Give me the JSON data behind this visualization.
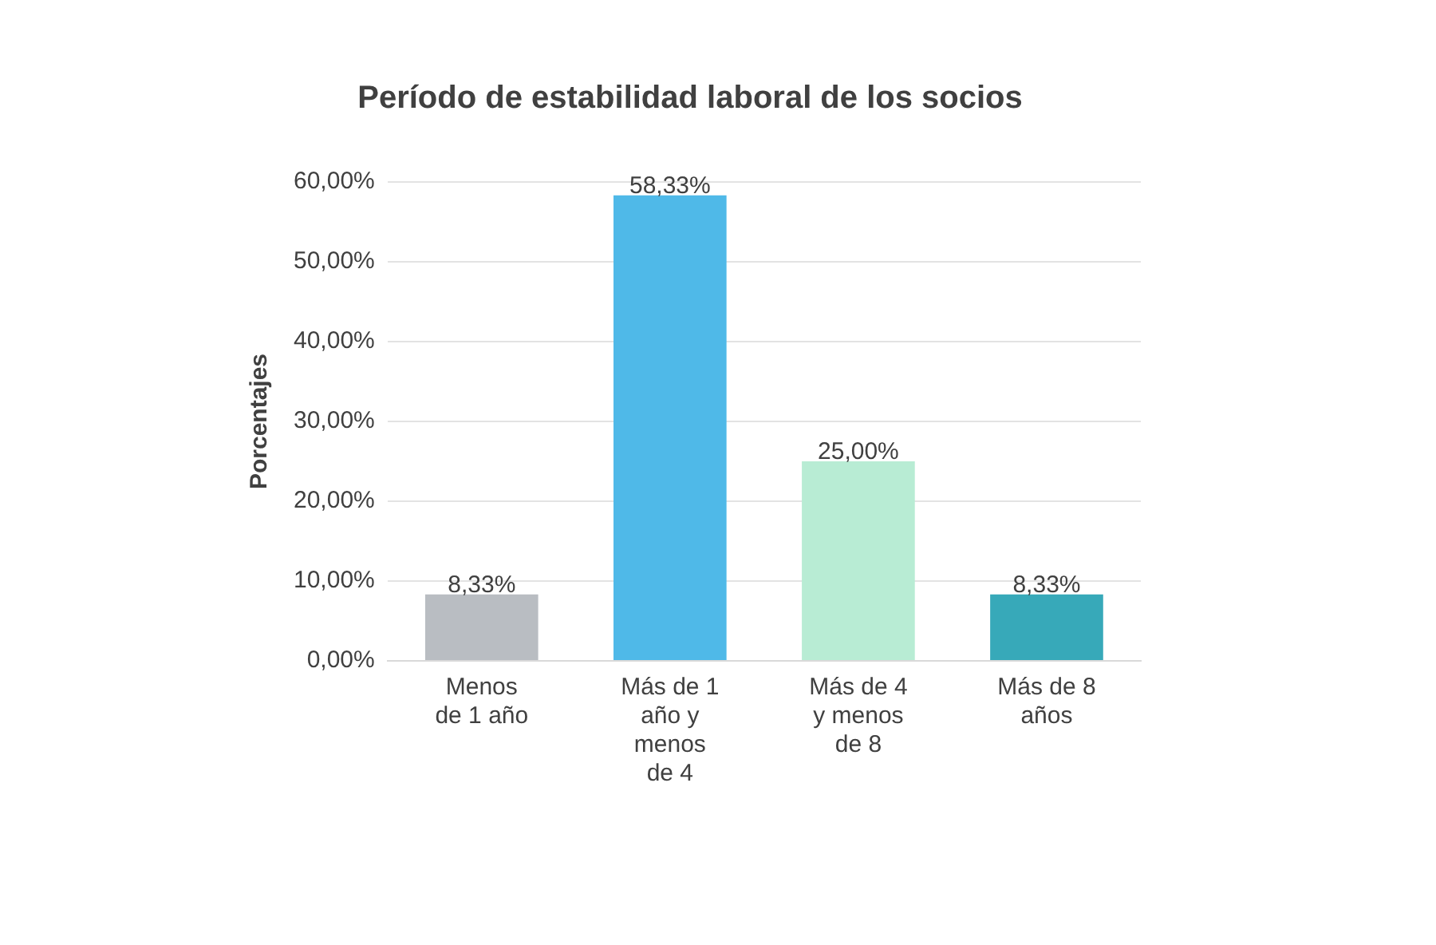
{
  "chart_data": {
    "type": "bar",
    "title": "Período de estabilidad laboral de los socios",
    "ylabel": "Porcentajes",
    "categories": [
      "Menos de 1 año",
      "Más de 1 año y menos de 4",
      "Más de 4 y menos de 8",
      "Más de 8 años"
    ],
    "values": [
      8.33,
      58.33,
      25,
      8.33
    ],
    "colors": [
      "#b9bdc2",
      "#4fb9e8",
      "#b8ecd4",
      "#37a9b9"
    ],
    "value_labels": [
      "8,33%",
      "58,33%",
      "25,00%",
      "8,33%"
    ],
    "ylim": [
      0,
      60
    ],
    "yticks": [
      {
        "value": 0,
        "label": "0,00%"
      },
      {
        "value": 10,
        "label": "10,00%"
      },
      {
        "value": 20,
        "label": "20,00%"
      },
      {
        "value": 30,
        "label": "30,00%"
      },
      {
        "value": 40,
        "label": "40,00%"
      },
      {
        "value": 50,
        "label": "50,00%"
      },
      {
        "value": 60,
        "label": "60,00%"
      }
    ],
    "grid": "y"
  }
}
